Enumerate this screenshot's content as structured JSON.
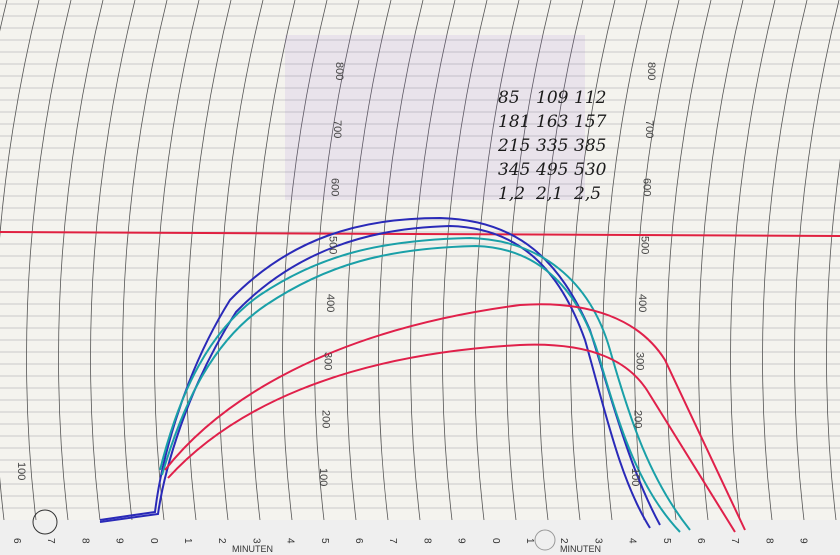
{
  "handwritten_table": {
    "rows": [
      [
        "85",
        "109",
        "112"
      ],
      [
        "181",
        "163",
        "157"
      ],
      [
        "215",
        "335",
        "385"
      ],
      [
        "345",
        "495",
        "530"
      ],
      [
        "1,2",
        "2,1",
        "2,5"
      ]
    ]
  },
  "scale_left": {
    "labels": [
      "100",
      "200",
      "300",
      "400",
      "500",
      "600",
      "700",
      "800"
    ]
  },
  "scale_right": {
    "labels": [
      "100",
      "200",
      "300",
      "400",
      "500",
      "600",
      "700",
      "800"
    ]
  },
  "scale_edge": {
    "labels": [
      "100"
    ]
  },
  "minute_digits": [
    "6",
    "7",
    "8",
    "9",
    "0",
    "1",
    "2",
    "3",
    "4",
    "5",
    "6",
    "7",
    "8",
    "9",
    "0",
    "1",
    "2",
    "3",
    "4",
    "5",
    "6",
    "7",
    "8",
    "9"
  ],
  "minute_caption": [
    "MINUTEN",
    "MINUTEN"
  ]
}
